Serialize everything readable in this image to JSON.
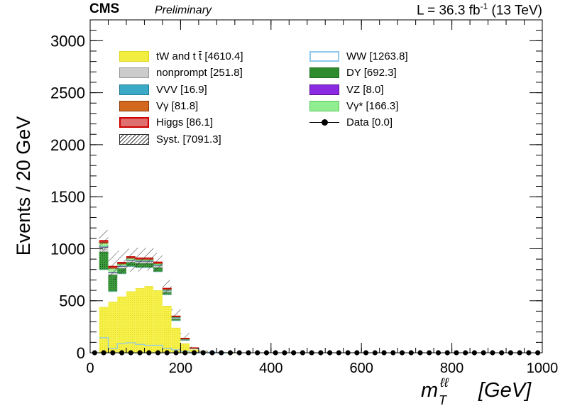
{
  "header": {
    "cms": "CMS",
    "preliminary": "Preliminary",
    "lumi_prefix": "L = 36.3 fb",
    "lumi_sup": "-1",
    "lumi_suffix": " (13 TeV)"
  },
  "chart_data": {
    "type": "bar",
    "stacked": true,
    "xlabel": "m_T^{ℓℓ} [GeV]",
    "ylabel": "Events / 20 GeV",
    "xlim": [
      0,
      1000
    ],
    "ylim": [
      0,
      3200
    ],
    "bin_width": 20,
    "bin_lows": [
      20,
      40,
      60,
      80,
      100,
      120,
      140,
      160,
      180,
      200,
      220,
      240,
      260,
      280,
      300
    ],
    "x_ticks": [
      0,
      200,
      400,
      600,
      800,
      1000
    ],
    "y_ticks": [
      0,
      500,
      1000,
      1500,
      2000,
      2500,
      3000
    ],
    "x_tick_labels": [
      "0",
      "200",
      "400",
      "600",
      "800",
      "1000"
    ],
    "y_tick_labels": [
      "0",
      "500",
      "1000",
      "1500",
      "2000",
      "2500",
      "3000"
    ],
    "grid": false,
    "legend_position": "top",
    "legend_columns": [
      [
        {
          "key": "top",
          "label": "tW and t t̄ [4610.4]"
        },
        {
          "key": "nonprompt",
          "label": "nonprompt [251.8]"
        },
        {
          "key": "vvv",
          "label": "VVV [16.9]"
        },
        {
          "key": "vg",
          "label": "Vγ [81.8]"
        },
        {
          "key": "higgs",
          "label": "Higgs [86.1]"
        },
        {
          "key": "syst",
          "label": "Syst. [7091.3]"
        }
      ],
      [
        {
          "key": "ww",
          "label": "WW [1263.8]"
        },
        {
          "key": "dy",
          "label": "DY [692.3]"
        },
        {
          "key": "vz",
          "label": "VZ [8.0]"
        },
        {
          "key": "vgstar",
          "label": "Vγ* [166.3]"
        },
        {
          "key": "data",
          "label": "Data [0.0]"
        }
      ]
    ],
    "series": [
      {
        "name": "tW and t t̄ [4610.4]",
        "key": "top",
        "color": "#f2ee40",
        "values": [
          440,
          490,
          540,
          590,
          620,
          640,
          600,
          450,
          240,
          90,
          30,
          10,
          4,
          2,
          1
        ]
      },
      {
        "name": "WW [1263.8]",
        "key": "ww",
        "color": "#ffffff",
        "edge": "#8fc8ee",
        "values": [
          360,
          100,
          220,
          240,
          200,
          180,
          180,
          110,
          70,
          30,
          10,
          4,
          2,
          1,
          0
        ]
      },
      {
        "name": "DY [692.3]",
        "key": "dy",
        "color": "#2e8b2e",
        "values": [
          170,
          160,
          50,
          40,
          40,
          40,
          40,
          20,
          14,
          6,
          2,
          1,
          0,
          0,
          0
        ]
      },
      {
        "name": "nonprompt [251.8]",
        "key": "nonprompt",
        "color": "#c8c8c8",
        "values": [
          45,
          25,
          22,
          20,
          20,
          20,
          20,
          16,
          12,
          6,
          2,
          1,
          0,
          0,
          0
        ]
      },
      {
        "name": "VZ [8.0]",
        "key": "vz",
        "color": "#8a2be2",
        "values": [
          2,
          1,
          1,
          1,
          1,
          1,
          1,
          0,
          0,
          0,
          0,
          0,
          0,
          0,
          0
        ]
      },
      {
        "name": "VVV [16.9]",
        "key": "vvv",
        "color": "#3aaac6",
        "values": [
          3,
          2,
          2,
          2,
          2,
          2,
          2,
          1,
          1,
          0,
          0,
          0,
          0,
          0,
          0
        ]
      },
      {
        "name": "Vγ* [166.3]",
        "key": "vgstar",
        "color": "#90ee90",
        "values": [
          30,
          30,
          15,
          12,
          10,
          10,
          10,
          8,
          5,
          2,
          1,
          0,
          0,
          0,
          0
        ]
      },
      {
        "name": "Vγ [81.8]",
        "key": "vg",
        "color": "#d2691e",
        "values": [
          12,
          10,
          8,
          8,
          8,
          8,
          8,
          6,
          4,
          2,
          1,
          0,
          0,
          0,
          0
        ]
      },
      {
        "name": "Higgs [86.1]",
        "key": "higgs",
        "color": "#cc1111",
        "values": [
          16,
          12,
          10,
          10,
          10,
          10,
          10,
          8,
          6,
          3,
          1,
          0,
          0,
          0,
          0
        ]
      }
    ],
    "syst_band": {
      "name": "Syst. [7091.3]",
      "up": [
        1180,
        960,
        980,
        1000,
        1010,
        1010,
        960,
        700,
        420,
        190,
        60,
        25,
        10,
        5,
        2
      ],
      "down": [
        980,
        700,
        760,
        780,
        780,
        790,
        780,
        560,
        340,
        140,
        35,
        12,
        4,
        1,
        0
      ]
    },
    "data": {
      "name": "Data [0.0]",
      "x_first": 10,
      "x_step": 20,
      "x_last": 990,
      "value": 0
    }
  }
}
